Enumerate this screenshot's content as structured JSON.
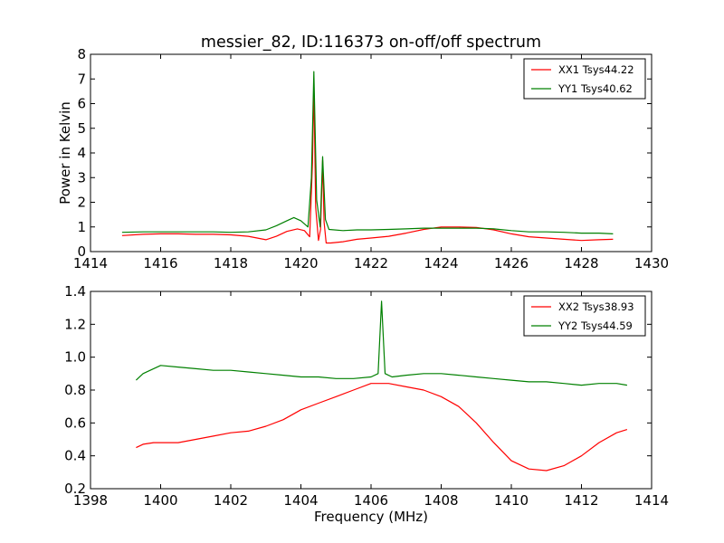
{
  "chart_data": [
    {
      "type": "line",
      "title": "messier_82, ID:116373 on-off/off spectrum",
      "xlabel": "",
      "ylabel": "Power in Kelvin",
      "xlim": [
        1414,
        1430
      ],
      "ylim": [
        0,
        8
      ],
      "xticks": [
        1414,
        1416,
        1418,
        1420,
        1422,
        1424,
        1426,
        1428,
        1430
      ],
      "yticks": [
        0,
        1,
        2,
        3,
        4,
        5,
        6,
        7,
        8
      ],
      "grid": false,
      "legend": "top-right",
      "series": [
        {
          "name": "XX1 Tsys44.22",
          "color": "#ff0000",
          "x": [
            1414.9,
            1415.5,
            1416.0,
            1416.5,
            1417.0,
            1417.5,
            1418.0,
            1418.5,
            1419.0,
            1419.3,
            1419.6,
            1419.9,
            1420.1,
            1420.25,
            1420.33,
            1420.37,
            1420.42,
            1420.5,
            1420.56,
            1420.62,
            1420.66,
            1420.72,
            1420.85,
            1421.2,
            1421.6,
            1422.0,
            1422.5,
            1423.0,
            1423.5,
            1424.0,
            1424.5,
            1425.0,
            1425.5,
            1426.0,
            1426.5,
            1427.0,
            1427.5,
            1428.0,
            1428.5,
            1428.9
          ],
          "y": [
            0.65,
            0.7,
            0.72,
            0.72,
            0.7,
            0.7,
            0.68,
            0.62,
            0.48,
            0.62,
            0.82,
            0.92,
            0.85,
            0.6,
            3.6,
            6.8,
            1.8,
            0.45,
            0.9,
            3.7,
            1.2,
            0.35,
            0.35,
            0.4,
            0.5,
            0.55,
            0.62,
            0.75,
            0.9,
            1.0,
            1.0,
            0.98,
            0.88,
            0.72,
            0.6,
            0.55,
            0.5,
            0.45,
            0.48,
            0.5
          ]
        },
        {
          "name": "YY1 Tsys40.62",
          "color": "#008000",
          "x": [
            1414.9,
            1415.5,
            1416.0,
            1416.5,
            1417.0,
            1417.5,
            1418.0,
            1418.5,
            1419.0,
            1419.3,
            1419.6,
            1419.8,
            1420.0,
            1420.2,
            1420.3,
            1420.37,
            1420.45,
            1420.55,
            1420.62,
            1420.7,
            1420.8,
            1421.2,
            1421.6,
            1422.0,
            1422.5,
            1423.0,
            1423.5,
            1424.0,
            1424.5,
            1425.0,
            1425.5,
            1426.0,
            1426.5,
            1427.0,
            1427.5,
            1428.0,
            1428.5,
            1428.9
          ],
          "y": [
            0.78,
            0.8,
            0.8,
            0.8,
            0.8,
            0.8,
            0.78,
            0.8,
            0.88,
            1.05,
            1.25,
            1.38,
            1.25,
            1.0,
            3.0,
            7.3,
            2.1,
            1.0,
            3.85,
            1.3,
            0.9,
            0.85,
            0.88,
            0.88,
            0.9,
            0.92,
            0.95,
            0.95,
            0.95,
            0.95,
            0.92,
            0.85,
            0.8,
            0.8,
            0.78,
            0.75,
            0.75,
            0.72
          ]
        }
      ]
    },
    {
      "type": "line",
      "title": "",
      "xlabel": "Frequency (MHz)",
      "ylabel": "",
      "xlim": [
        1398,
        1414
      ],
      "ylim": [
        0.2,
        1.4
      ],
      "xticks": [
        1398,
        1400,
        1402,
        1404,
        1406,
        1408,
        1410,
        1412,
        1414
      ],
      "yticks": [
        0.2,
        0.4,
        0.6,
        0.8,
        1.0,
        1.2,
        1.4
      ],
      "grid": false,
      "legend": "top-right",
      "series": [
        {
          "name": "XX2 Tsys38.93",
          "color": "#ff0000",
          "x": [
            1399.3,
            1399.5,
            1399.8,
            1400.0,
            1400.5,
            1401.0,
            1401.5,
            1402.0,
            1402.5,
            1403.0,
            1403.5,
            1404.0,
            1404.5,
            1405.0,
            1405.5,
            1406.0,
            1406.5,
            1407.0,
            1407.5,
            1408.0,
            1408.5,
            1409.0,
            1409.5,
            1410.0,
            1410.5,
            1411.0,
            1411.5,
            1412.0,
            1412.5,
            1413.0,
            1413.3
          ],
          "y": [
            0.45,
            0.47,
            0.48,
            0.48,
            0.48,
            0.5,
            0.52,
            0.54,
            0.55,
            0.58,
            0.62,
            0.68,
            0.72,
            0.76,
            0.8,
            0.84,
            0.84,
            0.82,
            0.8,
            0.76,
            0.7,
            0.6,
            0.48,
            0.37,
            0.32,
            0.31,
            0.34,
            0.4,
            0.48,
            0.54,
            0.56
          ]
        },
        {
          "name": "YY2 Tsys44.59",
          "color": "#008000",
          "x": [
            1399.3,
            1399.5,
            1400.0,
            1400.5,
            1401.0,
            1401.5,
            1402.0,
            1402.5,
            1403.0,
            1403.5,
            1404.0,
            1404.5,
            1405.0,
            1405.5,
            1406.0,
            1406.2,
            1406.3,
            1406.4,
            1406.6,
            1407.0,
            1407.5,
            1408.0,
            1408.5,
            1409.0,
            1409.5,
            1410.0,
            1410.5,
            1411.0,
            1411.5,
            1412.0,
            1412.5,
            1413.0,
            1413.3
          ],
          "y": [
            0.86,
            0.9,
            0.95,
            0.94,
            0.93,
            0.92,
            0.92,
            0.91,
            0.9,
            0.89,
            0.88,
            0.88,
            0.87,
            0.87,
            0.88,
            0.9,
            1.34,
            0.9,
            0.88,
            0.89,
            0.9,
            0.9,
            0.89,
            0.88,
            0.87,
            0.86,
            0.85,
            0.85,
            0.84,
            0.83,
            0.84,
            0.84,
            0.83
          ]
        }
      ]
    }
  ]
}
